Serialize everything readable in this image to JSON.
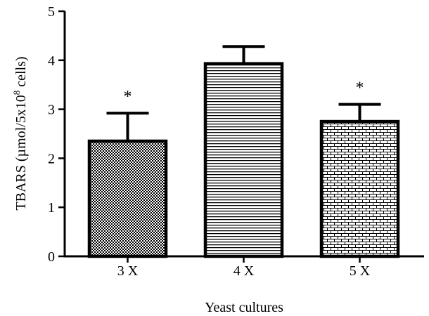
{
  "chart_data": {
    "type": "bar",
    "categories": [
      "3 X",
      "4 X",
      "5 X"
    ],
    "values": [
      2.35,
      3.93,
      2.75
    ],
    "errors": [
      0.57,
      0.35,
      0.35
    ],
    "annotations": [
      "*",
      "",
      "*"
    ],
    "xlabel": "Yeast cultures",
    "ylabel_main": "TBARS (µmol/5x10",
    "ylabel_sup": "8",
    "ylabel_tail": " cells)",
    "ylim": [
      0,
      5
    ],
    "yticks": [
      "0",
      "1",
      "2",
      "3",
      "4",
      "5"
    ],
    "patterns": [
      "checker",
      "horizontal-lines",
      "brick"
    ],
    "bar_color": "#ffffff",
    "pattern_color": "#000000",
    "grid": false,
    "legend": "none"
  }
}
